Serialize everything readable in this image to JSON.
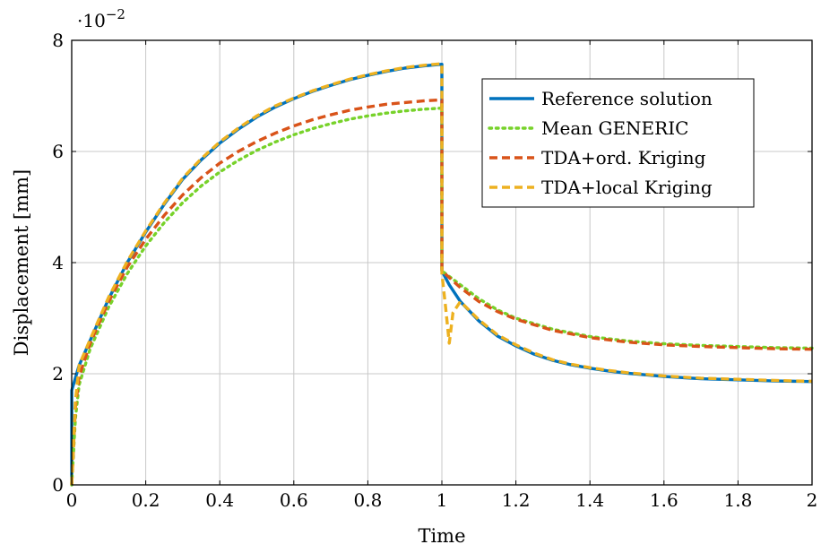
{
  "chart_data": {
    "type": "line",
    "title": "",
    "xlabel": "Time",
    "ylabel": "Displacement [mm]",
    "y_multiplier_base": "·10",
    "y_multiplier_exp": "−2",
    "xlim": [
      0,
      2
    ],
    "ylim": [
      0,
      8
    ],
    "x_ticks": [
      0,
      0.2,
      0.4,
      0.6,
      0.8,
      1,
      1.2,
      1.4,
      1.6,
      1.8,
      2
    ],
    "x_tick_labels": [
      "0",
      "0.2",
      "0.4",
      "0.6",
      "0.8",
      "1",
      "1.2",
      "1.4",
      "1.6",
      "1.8",
      "2"
    ],
    "y_ticks": [
      0,
      2,
      4,
      6,
      8
    ],
    "y_tick_labels": [
      "0",
      "2",
      "4",
      "6",
      "8"
    ],
    "grid": true,
    "legend_position": "top-right",
    "series": [
      {
        "name": "Reference solution",
        "color": "#0072bd",
        "dash": "solid",
        "x": [
          0,
          0.0001,
          0.02,
          0.05,
          0.1,
          0.15,
          0.2,
          0.25,
          0.3,
          0.35,
          0.4,
          0.45,
          0.5,
          0.55,
          0.6,
          0.65,
          0.7,
          0.75,
          0.8,
          0.85,
          0.9,
          0.95,
          1.0,
          1.0001,
          1.02,
          1.05,
          1.1,
          1.15,
          1.2,
          1.25,
          1.3,
          1.35,
          1.4,
          1.45,
          1.5,
          1.55,
          1.6,
          1.65,
          1.7,
          1.75,
          1.8,
          1.85,
          1.9,
          1.95,
          2.0
        ],
        "y": [
          0,
          1.7,
          2.15,
          2.6,
          3.35,
          4.0,
          4.55,
          5.05,
          5.5,
          5.85,
          6.15,
          6.4,
          6.62,
          6.8,
          6.95,
          7.08,
          7.19,
          7.29,
          7.37,
          7.44,
          7.5,
          7.54,
          7.57,
          3.85,
          3.6,
          3.3,
          2.95,
          2.68,
          2.5,
          2.35,
          2.24,
          2.16,
          2.1,
          2.05,
          2.01,
          1.98,
          1.95,
          1.93,
          1.91,
          1.9,
          1.89,
          1.88,
          1.87,
          1.865,
          1.86
        ]
      },
      {
        "name": "Mean GENERIC",
        "color": "#77d22a",
        "dash": "dotted",
        "x": [
          0,
          0.01,
          0.02,
          0.05,
          0.1,
          0.15,
          0.2,
          0.25,
          0.3,
          0.35,
          0.4,
          0.45,
          0.5,
          0.55,
          0.6,
          0.65,
          0.7,
          0.75,
          0.8,
          0.85,
          0.9,
          0.95,
          1.0,
          1.0001,
          1.02,
          1.05,
          1.1,
          1.15,
          1.2,
          1.3,
          1.4,
          1.5,
          1.6,
          1.7,
          1.8,
          1.9,
          2.0
        ],
        "y": [
          0,
          1.2,
          1.8,
          2.45,
          3.2,
          3.8,
          4.3,
          4.72,
          5.08,
          5.38,
          5.63,
          5.84,
          6.02,
          6.17,
          6.3,
          6.41,
          6.5,
          6.58,
          6.64,
          6.69,
          6.73,
          6.76,
          6.78,
          3.85,
          3.75,
          3.6,
          3.35,
          3.15,
          3.0,
          2.8,
          2.67,
          2.59,
          2.54,
          2.51,
          2.49,
          2.47,
          2.46
        ]
      },
      {
        "name": "TDA+ord. Kriging",
        "color": "#d95319",
        "dash": "dashed",
        "x": [
          0,
          0.01,
          0.02,
          0.05,
          0.1,
          0.15,
          0.2,
          0.25,
          0.3,
          0.35,
          0.4,
          0.45,
          0.5,
          0.55,
          0.6,
          0.65,
          0.7,
          0.75,
          0.8,
          0.85,
          0.9,
          0.95,
          1.0,
          1.0001,
          1.02,
          1.05,
          1.1,
          1.15,
          1.2,
          1.3,
          1.4,
          1.5,
          1.6,
          1.7,
          1.8,
          1.9,
          2.0
        ],
        "y": [
          0,
          1.4,
          1.95,
          2.55,
          3.3,
          3.92,
          4.42,
          4.85,
          5.22,
          5.53,
          5.79,
          6.0,
          6.18,
          6.33,
          6.46,
          6.57,
          6.66,
          6.74,
          6.8,
          6.85,
          6.88,
          6.91,
          6.93,
          3.85,
          3.73,
          3.55,
          3.3,
          3.12,
          2.98,
          2.78,
          2.65,
          2.57,
          2.52,
          2.49,
          2.47,
          2.45,
          2.44
        ]
      },
      {
        "name": "TDA+local Kriging",
        "color": "#edb120",
        "dash": "dashed",
        "x": [
          0,
          0.01,
          0.02,
          0.05,
          0.1,
          0.15,
          0.2,
          0.25,
          0.3,
          0.35,
          0.4,
          0.45,
          0.5,
          0.55,
          0.6,
          0.65,
          0.7,
          0.75,
          0.8,
          0.85,
          0.9,
          0.95,
          1.0,
          1.0001,
          1.01,
          1.02,
          1.03,
          1.05,
          1.1,
          1.15,
          1.2,
          1.25,
          1.3,
          1.35,
          1.4,
          1.45,
          1.5,
          1.55,
          1.6,
          1.65,
          1.7,
          1.75,
          1.8,
          1.85,
          1.9,
          1.95,
          2.0
        ],
        "y": [
          0,
          1.5,
          2.15,
          2.62,
          3.38,
          4.02,
          4.57,
          5.07,
          5.52,
          5.87,
          6.17,
          6.42,
          6.64,
          6.82,
          6.96,
          7.09,
          7.2,
          7.3,
          7.38,
          7.45,
          7.51,
          7.55,
          7.58,
          3.8,
          3.2,
          2.55,
          3.1,
          3.3,
          2.97,
          2.7,
          2.52,
          2.37,
          2.25,
          2.17,
          2.11,
          2.06,
          2.02,
          1.99,
          1.96,
          1.94,
          1.92,
          1.91,
          1.9,
          1.89,
          1.88,
          1.87,
          1.865
        ]
      }
    ]
  }
}
